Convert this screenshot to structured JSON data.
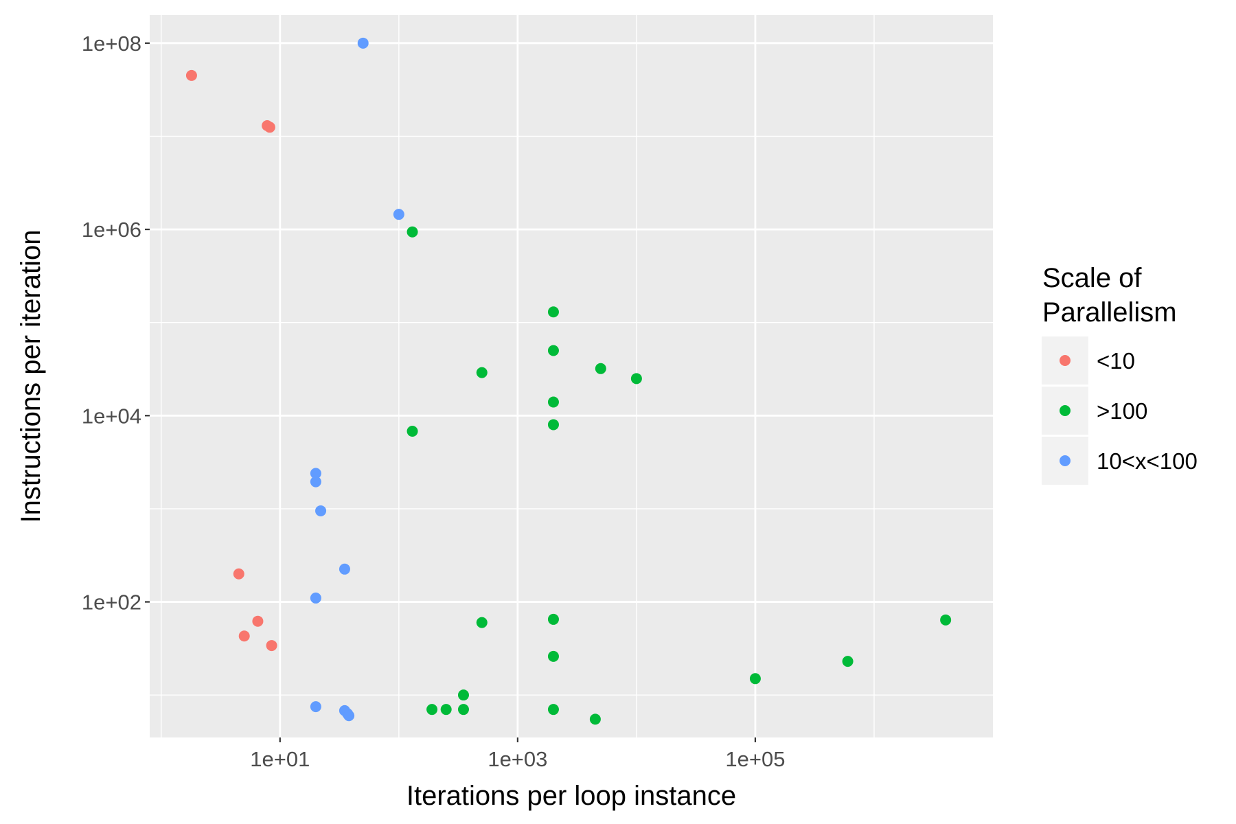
{
  "chart_data": {
    "type": "scatter",
    "xlabel": "Iterations per loop instance",
    "ylabel": "Instructions per iteration",
    "x_scale": "log10",
    "y_scale": "log10",
    "xlim": [
      0.8,
      10000000
    ],
    "ylim": [
      3.5,
      200000000
    ],
    "x_ticks": [
      {
        "value": 10,
        "label": "1e+01"
      },
      {
        "value": 1000,
        "label": "1e+03"
      },
      {
        "value": 100000,
        "label": "1e+05"
      }
    ],
    "y_ticks": [
      {
        "value": 100,
        "label": "1e+02"
      },
      {
        "value": 10000,
        "label": "1e+04"
      },
      {
        "value": 1000000,
        "label": "1e+06"
      },
      {
        "value": 100000000,
        "label": "1e+08"
      }
    ],
    "grid": true,
    "legend": {
      "title_lines": [
        "Scale of",
        "Parallelism"
      ],
      "position": "right"
    },
    "series": [
      {
        "name": "<10",
        "color": "#F8766D",
        "points": [
          {
            "x": 1.8,
            "y": 45000000
          },
          {
            "x": 7.8,
            "y": 13000000
          },
          {
            "x": 8.2,
            "y": 12500000
          },
          {
            "x": 4.5,
            "y": 200
          },
          {
            "x": 6.5,
            "y": 62
          },
          {
            "x": 5.0,
            "y": 43
          },
          {
            "x": 8.5,
            "y": 34
          }
        ]
      },
      {
        "name": ">100",
        "color": "#00BA38",
        "points": [
          {
            "x": 130,
            "y": 940000
          },
          {
            "x": 2000,
            "y": 130000
          },
          {
            "x": 2000,
            "y": 50000
          },
          {
            "x": 500,
            "y": 29000
          },
          {
            "x": 5000,
            "y": 32000
          },
          {
            "x": 10000,
            "y": 25000
          },
          {
            "x": 2000,
            "y": 14000
          },
          {
            "x": 2000,
            "y": 8000
          },
          {
            "x": 130,
            "y": 6800
          },
          {
            "x": 500,
            "y": 60
          },
          {
            "x": 2000,
            "y": 65
          },
          {
            "x": 2000,
            "y": 26
          },
          {
            "x": 350,
            "y": 10
          },
          {
            "x": 190,
            "y": 7
          },
          {
            "x": 250,
            "y": 7
          },
          {
            "x": 350,
            "y": 7
          },
          {
            "x": 2000,
            "y": 7
          },
          {
            "x": 4500,
            "y": 5.5
          },
          {
            "x": 100000,
            "y": 15
          },
          {
            "x": 600000,
            "y": 23
          },
          {
            "x": 4000000,
            "y": 64
          }
        ]
      },
      {
        "name": "10<x<100",
        "color": "#619CFF",
        "points": [
          {
            "x": 50,
            "y": 100000000
          },
          {
            "x": 100,
            "y": 1450000
          },
          {
            "x": 20,
            "y": 2400
          },
          {
            "x": 20,
            "y": 1950
          },
          {
            "x": 22,
            "y": 950
          },
          {
            "x": 35,
            "y": 225
          },
          {
            "x": 20,
            "y": 110
          },
          {
            "x": 20,
            "y": 7.5
          },
          {
            "x": 35,
            "y": 6.8
          },
          {
            "x": 37,
            "y": 6.3
          },
          {
            "x": 38,
            "y": 6.0
          }
        ]
      }
    ]
  }
}
